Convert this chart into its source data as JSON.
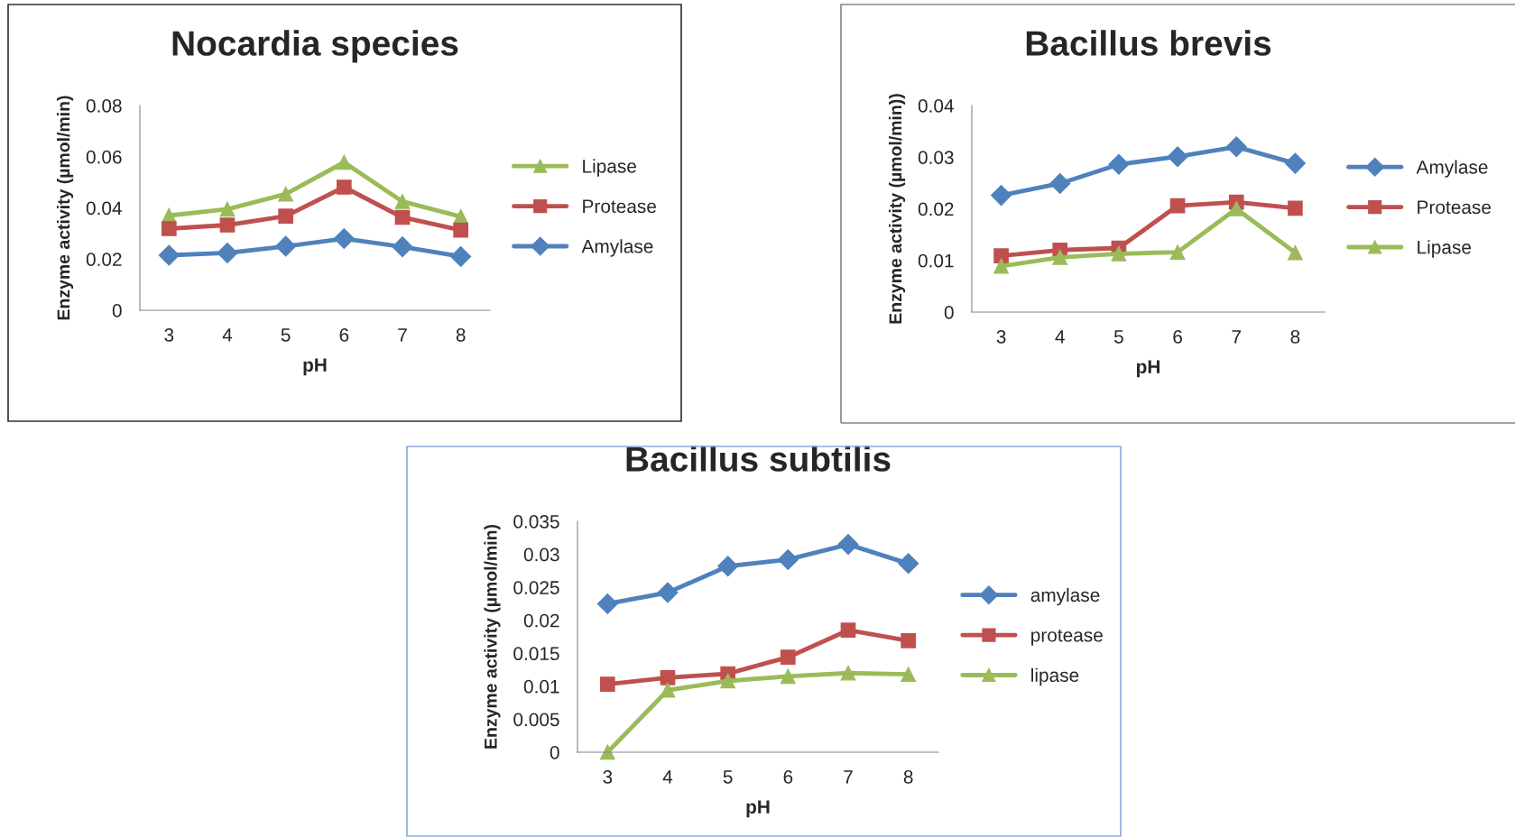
{
  "chart_data": [
    {
      "type": "line",
      "title": "Nocardia species",
      "xlabel": "pH",
      "ylabel": "Enzyme activity (µmol/min)",
      "categories": [
        "3",
        "4",
        "5",
        "6",
        "7",
        "8"
      ],
      "ylim": [
        0,
        0.08
      ],
      "yticks": [
        0,
        0.02,
        0.04,
        0.06,
        0.08
      ],
      "grid": false,
      "legend": "right",
      "series": [
        {
          "name": "Lipase",
          "color": "#9bbb59",
          "marker": "triangle",
          "values": [
            0.037,
            0.0395,
            0.0454,
            0.0578,
            0.0425,
            0.0366
          ]
        },
        {
          "name": "Protease",
          "color": "#c0504d",
          "marker": "square",
          "values": [
            0.0319,
            0.0333,
            0.0368,
            0.0481,
            0.0363,
            0.0313
          ]
        },
        {
          "name": "Amylase",
          "color": "#4f81bd",
          "marker": "diamond",
          "values": [
            0.0215,
            0.0224,
            0.025,
            0.028,
            0.0248,
            0.021
          ]
        }
      ]
    },
    {
      "type": "line",
      "title": "Bacillus brevis",
      "xlabel": "pH",
      "ylabel": "Enzyme activity (µmol/min))",
      "categories": [
        "3",
        "4",
        "5",
        "6",
        "7",
        "8"
      ],
      "ylim": [
        0,
        0.04
      ],
      "yticks": [
        0,
        0.01,
        0.02,
        0.03,
        0.04
      ],
      "grid": false,
      "legend": "right",
      "series": [
        {
          "name": "Amylase",
          "color": "#4f81bd",
          "marker": "diamond",
          "values": [
            0.0226,
            0.0249,
            0.0286,
            0.0301,
            0.032,
            0.0288
          ]
        },
        {
          "name": "Protease",
          "color": "#c0504d",
          "marker": "square",
          "values": [
            0.0109,
            0.012,
            0.0124,
            0.0206,
            0.0213,
            0.0201
          ]
        },
        {
          "name": "Lipase",
          "color": "#9bbb59",
          "marker": "triangle",
          "values": [
            0.0089,
            0.0106,
            0.0113,
            0.0116,
            0.02,
            0.0115
          ]
        }
      ]
    },
    {
      "type": "line",
      "title": "Bacillus subtilis",
      "xlabel": "pH",
      "ylabel": "Enzyme activity (µmol/min)",
      "categories": [
        "3",
        "4",
        "5",
        "6",
        "7",
        "8"
      ],
      "ylim": [
        0,
        0.035
      ],
      "yticks": [
        0,
        0.005,
        0.01,
        0.015,
        0.02,
        0.025,
        0.03,
        0.035
      ],
      "grid": false,
      "legend": "right",
      "series": [
        {
          "name": "amylase",
          "color": "#4f81bd",
          "marker": "diamond",
          "values": [
            0.0225,
            0.0242,
            0.0282,
            0.0292,
            0.0315,
            0.0286
          ]
        },
        {
          "name": "protease",
          "color": "#c0504d",
          "marker": "square",
          "values": [
            0.0103,
            0.0113,
            0.0119,
            0.0144,
            0.0185,
            0.0169
          ]
        },
        {
          "name": "lipase",
          "color": "#9bbb59",
          "marker": "triangle",
          "values": [
            0,
            0.0094,
            0.0108,
            0.0115,
            0.012,
            0.0118
          ]
        }
      ]
    }
  ]
}
